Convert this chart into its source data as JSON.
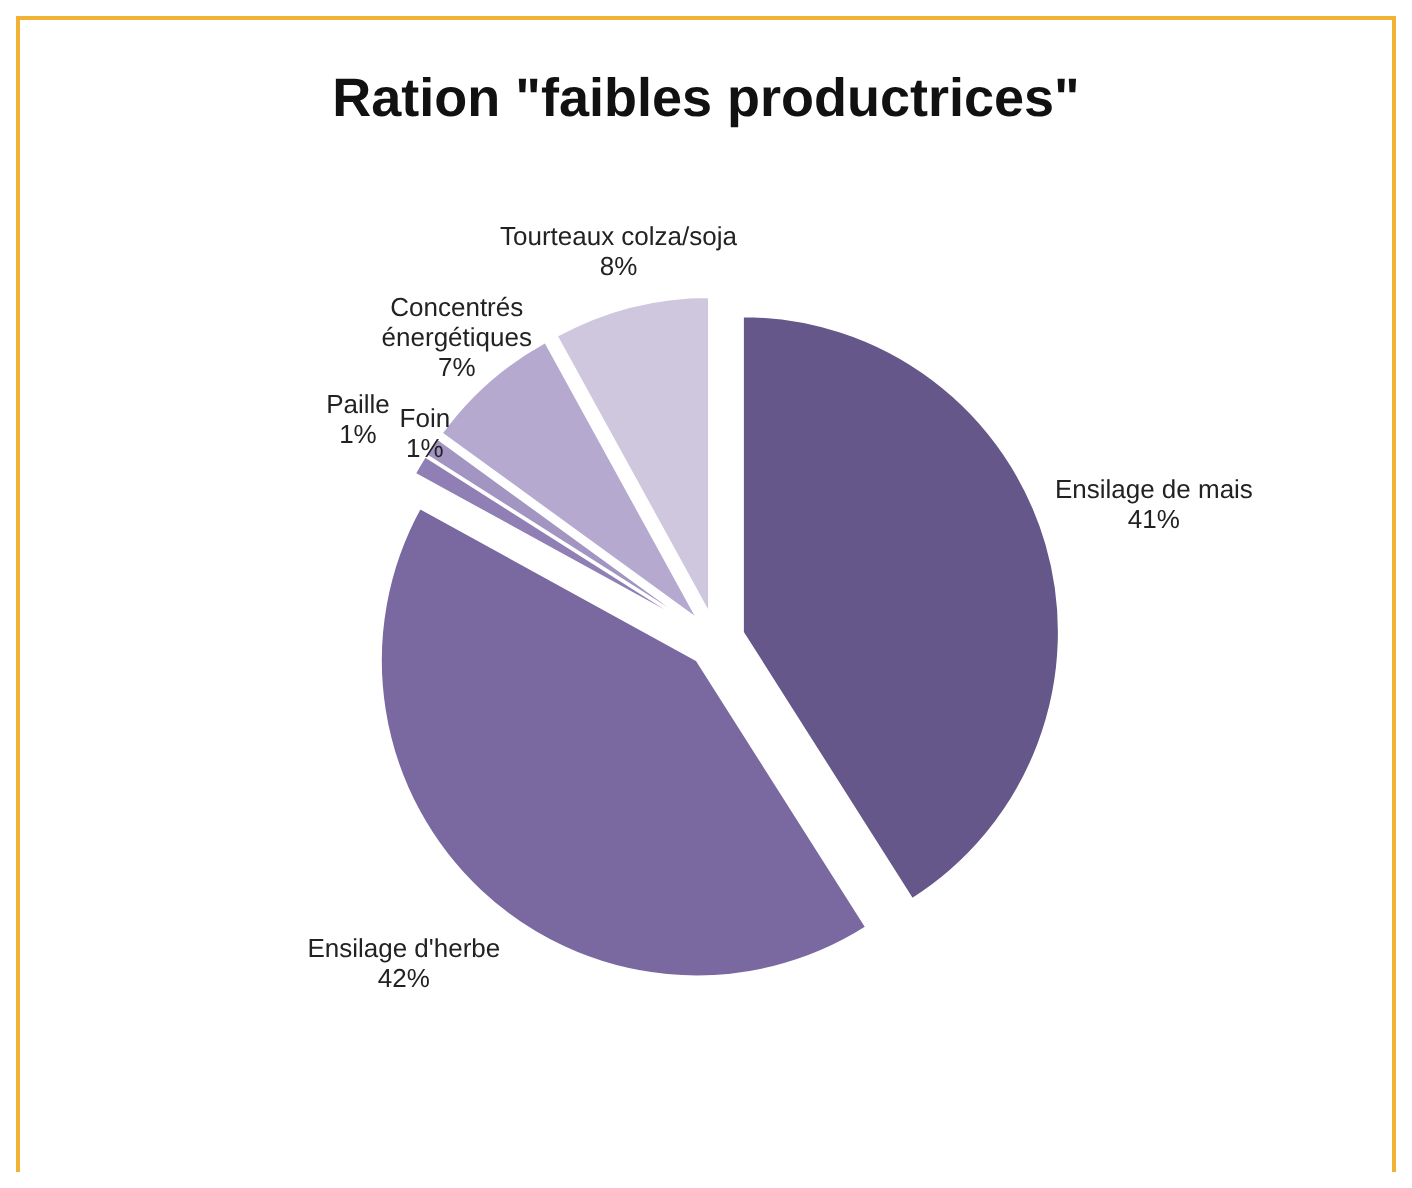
{
  "chart_data": {
    "type": "pie",
    "title": "Ration \"faibles productrices\"",
    "categories": [
      "Ensilage de mais",
      "Ensilage d'herbe",
      "Paille",
      "Foin",
      "Concentrés énergétiques",
      "Tourteaux colza/soja"
    ],
    "values": [
      41,
      42,
      1,
      1,
      7,
      8
    ],
    "value_labels": [
      "41%",
      "42%",
      "1%",
      "1%",
      "7%",
      "8%"
    ],
    "colors": [
      "#65578a",
      "#7a68a0",
      "#8f7fb4",
      "#a395c2",
      "#b5a9cf",
      "#cfc7de"
    ],
    "legend": false
  }
}
